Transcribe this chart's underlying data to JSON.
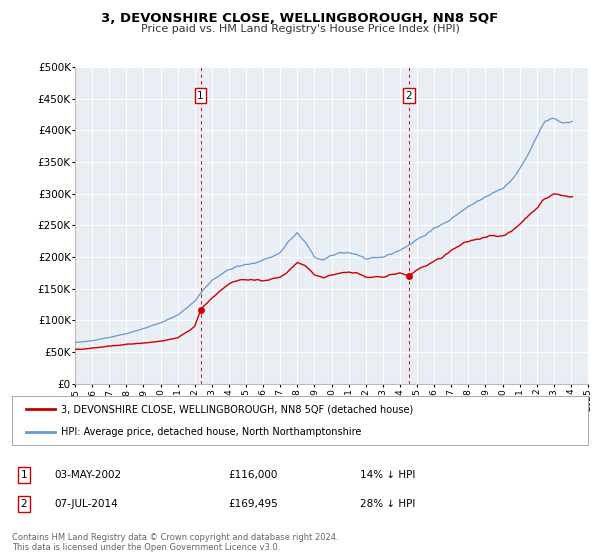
{
  "title": "3, DEVONSHIRE CLOSE, WELLINGBOROUGH, NN8 5QF",
  "subtitle": "Price paid vs. HM Land Registry's House Price Index (HPI)",
  "hpi_label": "HPI: Average price, detached house, North Northamptonshire",
  "property_label": "3, DEVONSHIRE CLOSE, WELLINGBOROUGH, NN8 5QF (detached house)",
  "red_color": "#cc0000",
  "blue_color": "#6699cc",
  "background_color": "#e8eef4",
  "annotation1": {
    "label": "1",
    "date": "03-MAY-2002",
    "price": "£116,000",
    "pct": "14% ↓ HPI",
    "x_year": 2002.34,
    "y_val": 116000
  },
  "annotation2": {
    "label": "2",
    "date": "07-JUL-2014",
    "price": "£169,495",
    "pct": "28% ↓ HPI",
    "x_year": 2014.51,
    "y_val": 169495
  },
  "ylim": [
    0,
    500000
  ],
  "xlim_start": 1995,
  "xlim_end": 2025,
  "yticks": [
    0,
    50000,
    100000,
    150000,
    200000,
    250000,
    300000,
    350000,
    400000,
    450000,
    500000
  ],
  "ytick_labels": [
    "£0",
    "£50K",
    "£100K",
    "£150K",
    "£200K",
    "£250K",
    "£300K",
    "£350K",
    "£400K",
    "£450K",
    "£500K"
  ],
  "xticks": [
    1995,
    1996,
    1997,
    1998,
    1999,
    2000,
    2001,
    2002,
    2003,
    2004,
    2005,
    2006,
    2007,
    2008,
    2009,
    2010,
    2011,
    2012,
    2013,
    2014,
    2015,
    2016,
    2017,
    2018,
    2019,
    2020,
    2021,
    2022,
    2023,
    2024,
    2025
  ],
  "footnote1": "Contains HM Land Registry data © Crown copyright and database right 2024.",
  "footnote2": "This data is licensed under the Open Government Licence v3.0."
}
